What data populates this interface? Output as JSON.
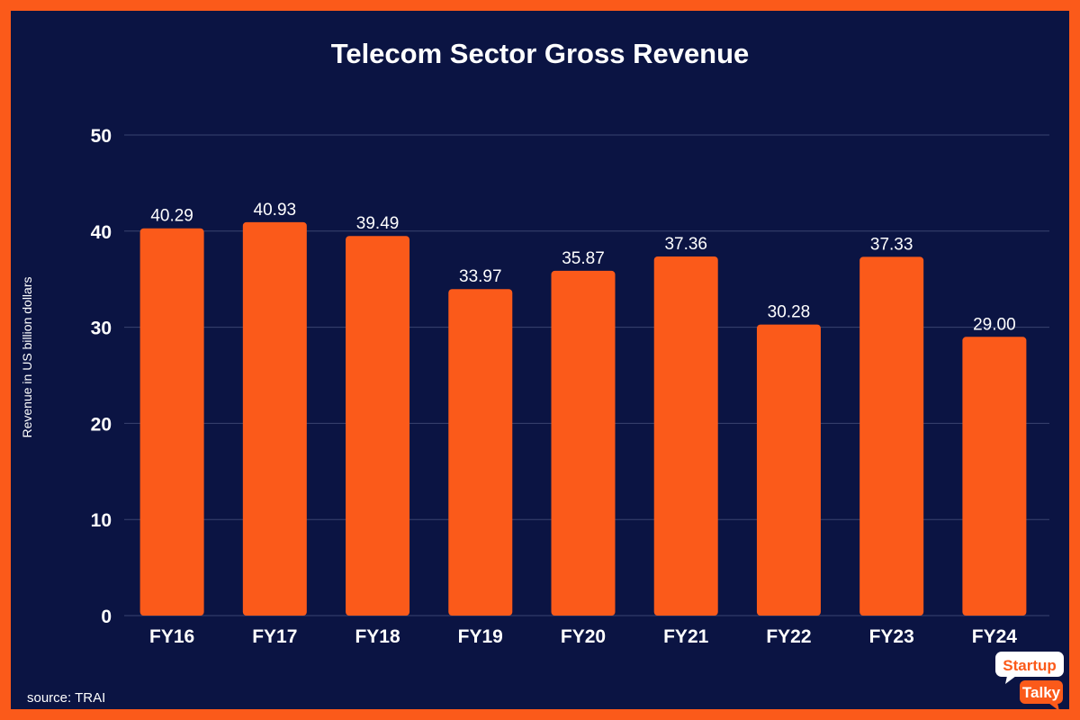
{
  "chart_data": {
    "type": "bar",
    "title": "Telecom Sector Gross Revenue",
    "ylabel": "Revenue in US billion dollars",
    "xlabel": "",
    "categories": [
      "FY16",
      "FY17",
      "FY18",
      "FY19",
      "FY20",
      "FY21",
      "FY22",
      "FY23",
      "FY24"
    ],
    "values": [
      40.29,
      40.93,
      39.49,
      33.97,
      35.87,
      37.36,
      30.28,
      37.33,
      29.0
    ],
    "value_labels": [
      "40.29",
      "40.93",
      "39.49",
      "33.97",
      "35.87",
      "37.36",
      "30.28",
      "37.33",
      "29.00"
    ],
    "ylim": [
      0,
      50
    ],
    "yticks": [
      0,
      10,
      20,
      30,
      40,
      50
    ],
    "grid": true,
    "legend": "none"
  },
  "source": "source: TRAI",
  "logo": {
    "line1": "Startup",
    "line2": "Talky"
  },
  "colors": {
    "bar": "#fb5a1a",
    "background": "#0b1443",
    "border": "#fb5a1a",
    "grid": "#3a4370",
    "text": "#ffffff"
  }
}
